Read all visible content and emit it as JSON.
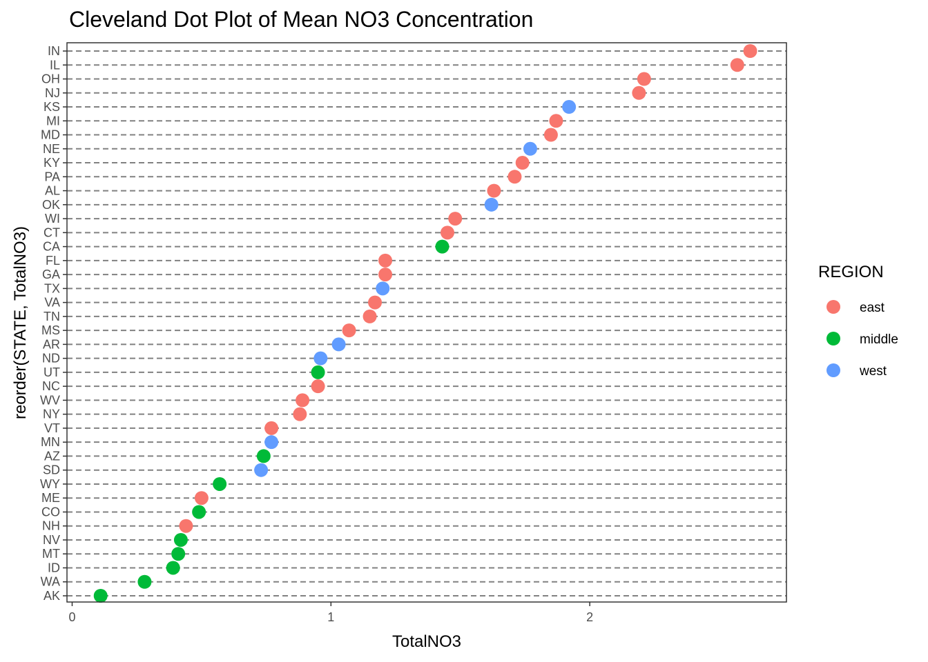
{
  "chart_data": {
    "type": "scatter",
    "title": "Cleveland Dot Plot of Mean NO3 Concentration",
    "xlabel": "TotalNO3",
    "ylabel": "reorder(STATE, TotalNO3)",
    "xlim": [
      -0.02,
      2.76
    ],
    "xticks": [
      0,
      1,
      2
    ],
    "grid": "dashed horizontal gridlines",
    "legend": {
      "title": "REGION",
      "placement": "right",
      "entries": [
        {
          "name": "east",
          "color": "#F8766D"
        },
        {
          "name": "middle",
          "color": "#00BA38"
        },
        {
          "name": "west",
          "color": "#619CFF"
        }
      ]
    },
    "points": [
      {
        "state": "AK",
        "value": 0.11,
        "region": "middle"
      },
      {
        "state": "WA",
        "value": 0.28,
        "region": "middle"
      },
      {
        "state": "ID",
        "value": 0.39,
        "region": "middle"
      },
      {
        "state": "MT",
        "value": 0.41,
        "region": "middle"
      },
      {
        "state": "NV",
        "value": 0.42,
        "region": "middle"
      },
      {
        "state": "NH",
        "value": 0.44,
        "region": "east"
      },
      {
        "state": "CO",
        "value": 0.49,
        "region": "middle"
      },
      {
        "state": "ME",
        "value": 0.5,
        "region": "east"
      },
      {
        "state": "WY",
        "value": 0.57,
        "region": "middle"
      },
      {
        "state": "SD",
        "value": 0.73,
        "region": "west"
      },
      {
        "state": "AZ",
        "value": 0.74,
        "region": "middle"
      },
      {
        "state": "MN",
        "value": 0.77,
        "region": "west"
      },
      {
        "state": "VT",
        "value": 0.77,
        "region": "east"
      },
      {
        "state": "NY",
        "value": 0.88,
        "region": "east"
      },
      {
        "state": "WV",
        "value": 0.89,
        "region": "east"
      },
      {
        "state": "NC",
        "value": 0.95,
        "region": "east"
      },
      {
        "state": "UT",
        "value": 0.95,
        "region": "middle"
      },
      {
        "state": "ND",
        "value": 0.96,
        "region": "west"
      },
      {
        "state": "AR",
        "value": 1.03,
        "region": "west"
      },
      {
        "state": "MS",
        "value": 1.07,
        "region": "east"
      },
      {
        "state": "TN",
        "value": 1.15,
        "region": "east"
      },
      {
        "state": "VA",
        "value": 1.17,
        "region": "east"
      },
      {
        "state": "TX",
        "value": 1.2,
        "region": "west"
      },
      {
        "state": "GA",
        "value": 1.21,
        "region": "east"
      },
      {
        "state": "FL",
        "value": 1.21,
        "region": "east"
      },
      {
        "state": "CA",
        "value": 1.43,
        "region": "middle"
      },
      {
        "state": "CT",
        "value": 1.45,
        "region": "east"
      },
      {
        "state": "WI",
        "value": 1.48,
        "region": "east"
      },
      {
        "state": "OK",
        "value": 1.62,
        "region": "west"
      },
      {
        "state": "AL",
        "value": 1.63,
        "region": "east"
      },
      {
        "state": "PA",
        "value": 1.71,
        "region": "east"
      },
      {
        "state": "KY",
        "value": 1.74,
        "region": "east"
      },
      {
        "state": "NE",
        "value": 1.77,
        "region": "west"
      },
      {
        "state": "MD",
        "value": 1.85,
        "region": "east"
      },
      {
        "state": "MI",
        "value": 1.87,
        "region": "east"
      },
      {
        "state": "KS",
        "value": 1.92,
        "region": "west"
      },
      {
        "state": "NJ",
        "value": 2.19,
        "region": "east"
      },
      {
        "state": "OH",
        "value": 2.21,
        "region": "east"
      },
      {
        "state": "IL",
        "value": 2.57,
        "region": "east"
      },
      {
        "state": "IN",
        "value": 2.62,
        "region": "east"
      }
    ]
  }
}
